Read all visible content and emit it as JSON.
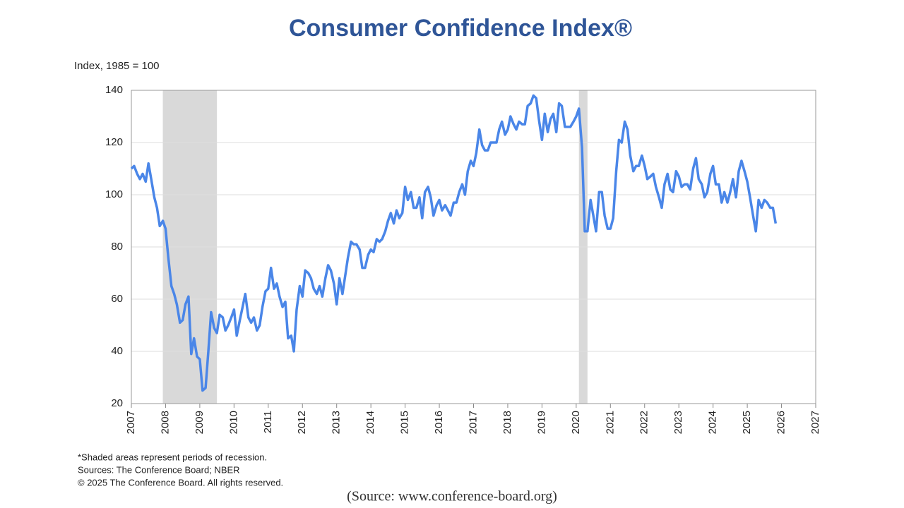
{
  "chart_data": {
    "type": "line",
    "title": "Consumer Confidence Index®",
    "y_axis_label": "Index, 1985 = 100",
    "footnotes": [
      "*Shaded areas represent periods of recession.",
      "Sources:  The Conference Board;  NBER",
      "© 2025 The Conference Board. All rights reserved."
    ],
    "source": "(Source: www.conference-board.org)",
    "xlim": [
      2007,
      2027
    ],
    "xticks": [
      2007,
      2008,
      2009,
      2010,
      2011,
      2012,
      2013,
      2014,
      2015,
      2016,
      2017,
      2018,
      2019,
      2020,
      2021,
      2022,
      2023,
      2024,
      2025,
      2026,
      2027
    ],
    "ylim": [
      20,
      140
    ],
    "yticks": [
      20,
      40,
      60,
      80,
      100,
      120,
      140
    ],
    "grid": true,
    "recessions": [
      [
        2007.92,
        2009.5
      ],
      [
        2020.08,
        2020.33
      ]
    ],
    "recession_color": "#d9d9d9",
    "x": [
      2007.0,
      2007.08,
      2007.17,
      2007.25,
      2007.33,
      2007.42,
      2007.5,
      2007.58,
      2007.67,
      2007.75,
      2007.83,
      2007.92,
      2008.0,
      2008.08,
      2008.17,
      2008.25,
      2008.33,
      2008.42,
      2008.5,
      2008.58,
      2008.67,
      2008.75,
      2008.83,
      2008.92,
      2009.0,
      2009.08,
      2009.17,
      2009.25,
      2009.33,
      2009.42,
      2009.5,
      2009.58,
      2009.67,
      2009.75,
      2009.83,
      2009.92,
      2010.0,
      2010.08,
      2010.17,
      2010.25,
      2010.33,
      2010.42,
      2010.5,
      2010.58,
      2010.67,
      2010.75,
      2010.83,
      2010.92,
      2011.0,
      2011.08,
      2011.17,
      2011.25,
      2011.33,
      2011.42,
      2011.5,
      2011.58,
      2011.67,
      2011.75,
      2011.83,
      2011.92,
      2012.0,
      2012.08,
      2012.17,
      2012.25,
      2012.33,
      2012.42,
      2012.5,
      2012.58,
      2012.67,
      2012.75,
      2012.83,
      2012.92,
      2013.0,
      2013.08,
      2013.17,
      2013.25,
      2013.33,
      2013.42,
      2013.5,
      2013.58,
      2013.67,
      2013.75,
      2013.83,
      2013.92,
      2014.0,
      2014.08,
      2014.17,
      2014.25,
      2014.33,
      2014.42,
      2014.5,
      2014.58,
      2014.67,
      2014.75,
      2014.83,
      2014.92,
      2015.0,
      2015.08,
      2015.17,
      2015.25,
      2015.33,
      2015.42,
      2015.5,
      2015.58,
      2015.67,
      2015.75,
      2015.83,
      2015.92,
      2016.0,
      2016.08,
      2016.17,
      2016.25,
      2016.33,
      2016.42,
      2016.5,
      2016.58,
      2016.67,
      2016.75,
      2016.83,
      2016.92,
      2017.0,
      2017.08,
      2017.17,
      2017.25,
      2017.33,
      2017.42,
      2017.5,
      2017.58,
      2017.67,
      2017.75,
      2017.83,
      2017.92,
      2018.0,
      2018.08,
      2018.17,
      2018.25,
      2018.33,
      2018.42,
      2018.5,
      2018.58,
      2018.67,
      2018.75,
      2018.83,
      2018.92,
      2019.0,
      2019.08,
      2019.17,
      2019.25,
      2019.33,
      2019.42,
      2019.5,
      2019.58,
      2019.67,
      2019.75,
      2019.83,
      2019.92,
      2020.0,
      2020.08,
      2020.17,
      2020.25,
      2020.33,
      2020.42,
      2020.5,
      2020.58,
      2020.67,
      2020.75,
      2020.83,
      2020.92,
      2021.0,
      2021.08,
      2021.17,
      2021.25,
      2021.33,
      2021.42,
      2021.5,
      2021.58,
      2021.67,
      2021.75,
      2021.83,
      2021.92,
      2022.0,
      2022.08,
      2022.17,
      2022.25,
      2022.33,
      2022.42,
      2022.5,
      2022.58,
      2022.67,
      2022.75,
      2022.83,
      2022.92,
      2023.0,
      2023.08,
      2023.17,
      2023.25,
      2023.33,
      2023.42,
      2023.5,
      2023.58,
      2023.67,
      2023.75,
      2023.83,
      2023.92,
      2024.0,
      2024.08,
      2024.17,
      2024.25,
      2024.33,
      2024.42,
      2024.5,
      2024.58,
      2024.67,
      2024.75,
      2024.83,
      2024.92,
      2025.0,
      2025.08,
      2025.17,
      2025.25,
      2025.33,
      2025.42,
      2025.5,
      2025.58,
      2025.67,
      2025.75,
      2025.83
    ],
    "series": [
      {
        "color": "#4a86e8",
        "values": [
          110,
          111,
          108,
          106,
          108,
          105,
          112,
          106,
          99,
          95,
          88,
          90,
          87,
          76,
          65,
          62,
          58,
          51,
          52,
          58,
          61,
          39,
          45,
          38,
          37,
          25,
          26,
          40,
          55,
          49,
          47,
          54,
          53,
          48,
          50,
          53,
          56,
          46,
          52,
          57,
          62,
          53,
          51,
          53,
          48,
          50,
          57,
          63,
          64,
          72,
          64,
          66,
          61,
          57,
          59,
          45,
          46,
          40,
          56,
          65,
          61,
          71,
          70,
          68,
          64,
          62,
          65,
          61,
          68,
          73,
          71,
          66,
          58,
          68,
          62,
          69,
          76,
          82,
          81,
          81,
          79,
          72,
          72,
          77,
          79,
          78,
          83,
          82,
          83,
          86,
          90,
          93,
          89,
          94,
          91,
          93,
          103,
          98,
          101,
          95,
          95,
          99,
          91,
          101,
          103,
          99,
          92,
          96,
          98,
          94,
          96,
          94,
          92,
          97,
          97,
          101,
          104,
          100,
          109,
          113,
          111,
          116,
          125,
          119,
          117,
          117,
          120,
          120,
          120,
          125,
          128,
          123,
          125,
          130,
          127,
          125,
          128,
          127,
          127,
          134,
          135,
          138,
          137,
          128,
          121,
          131,
          124,
          129,
          131,
          124,
          135,
          134,
          126,
          126,
          126,
          128,
          130,
          133,
          118,
          86,
          86,
          98,
          92,
          86,
          101,
          101,
          92,
          87,
          87,
          91,
          109,
          121,
          120,
          128,
          125,
          115,
          109,
          111,
          111,
          115,
          111,
          106,
          107,
          108,
          103,
          99,
          95,
          104,
          108,
          102,
          101,
          109,
          107,
          103,
          104,
          104,
          102,
          110,
          114,
          106,
          104,
          99,
          101,
          108,
          111,
          104,
          104,
          97,
          101,
          97,
          101,
          106,
          99,
          109,
          113,
          109,
          105,
          99,
          92,
          86,
          98,
          95,
          98,
          97,
          95,
          95,
          89
        ]
      }
    ]
  }
}
